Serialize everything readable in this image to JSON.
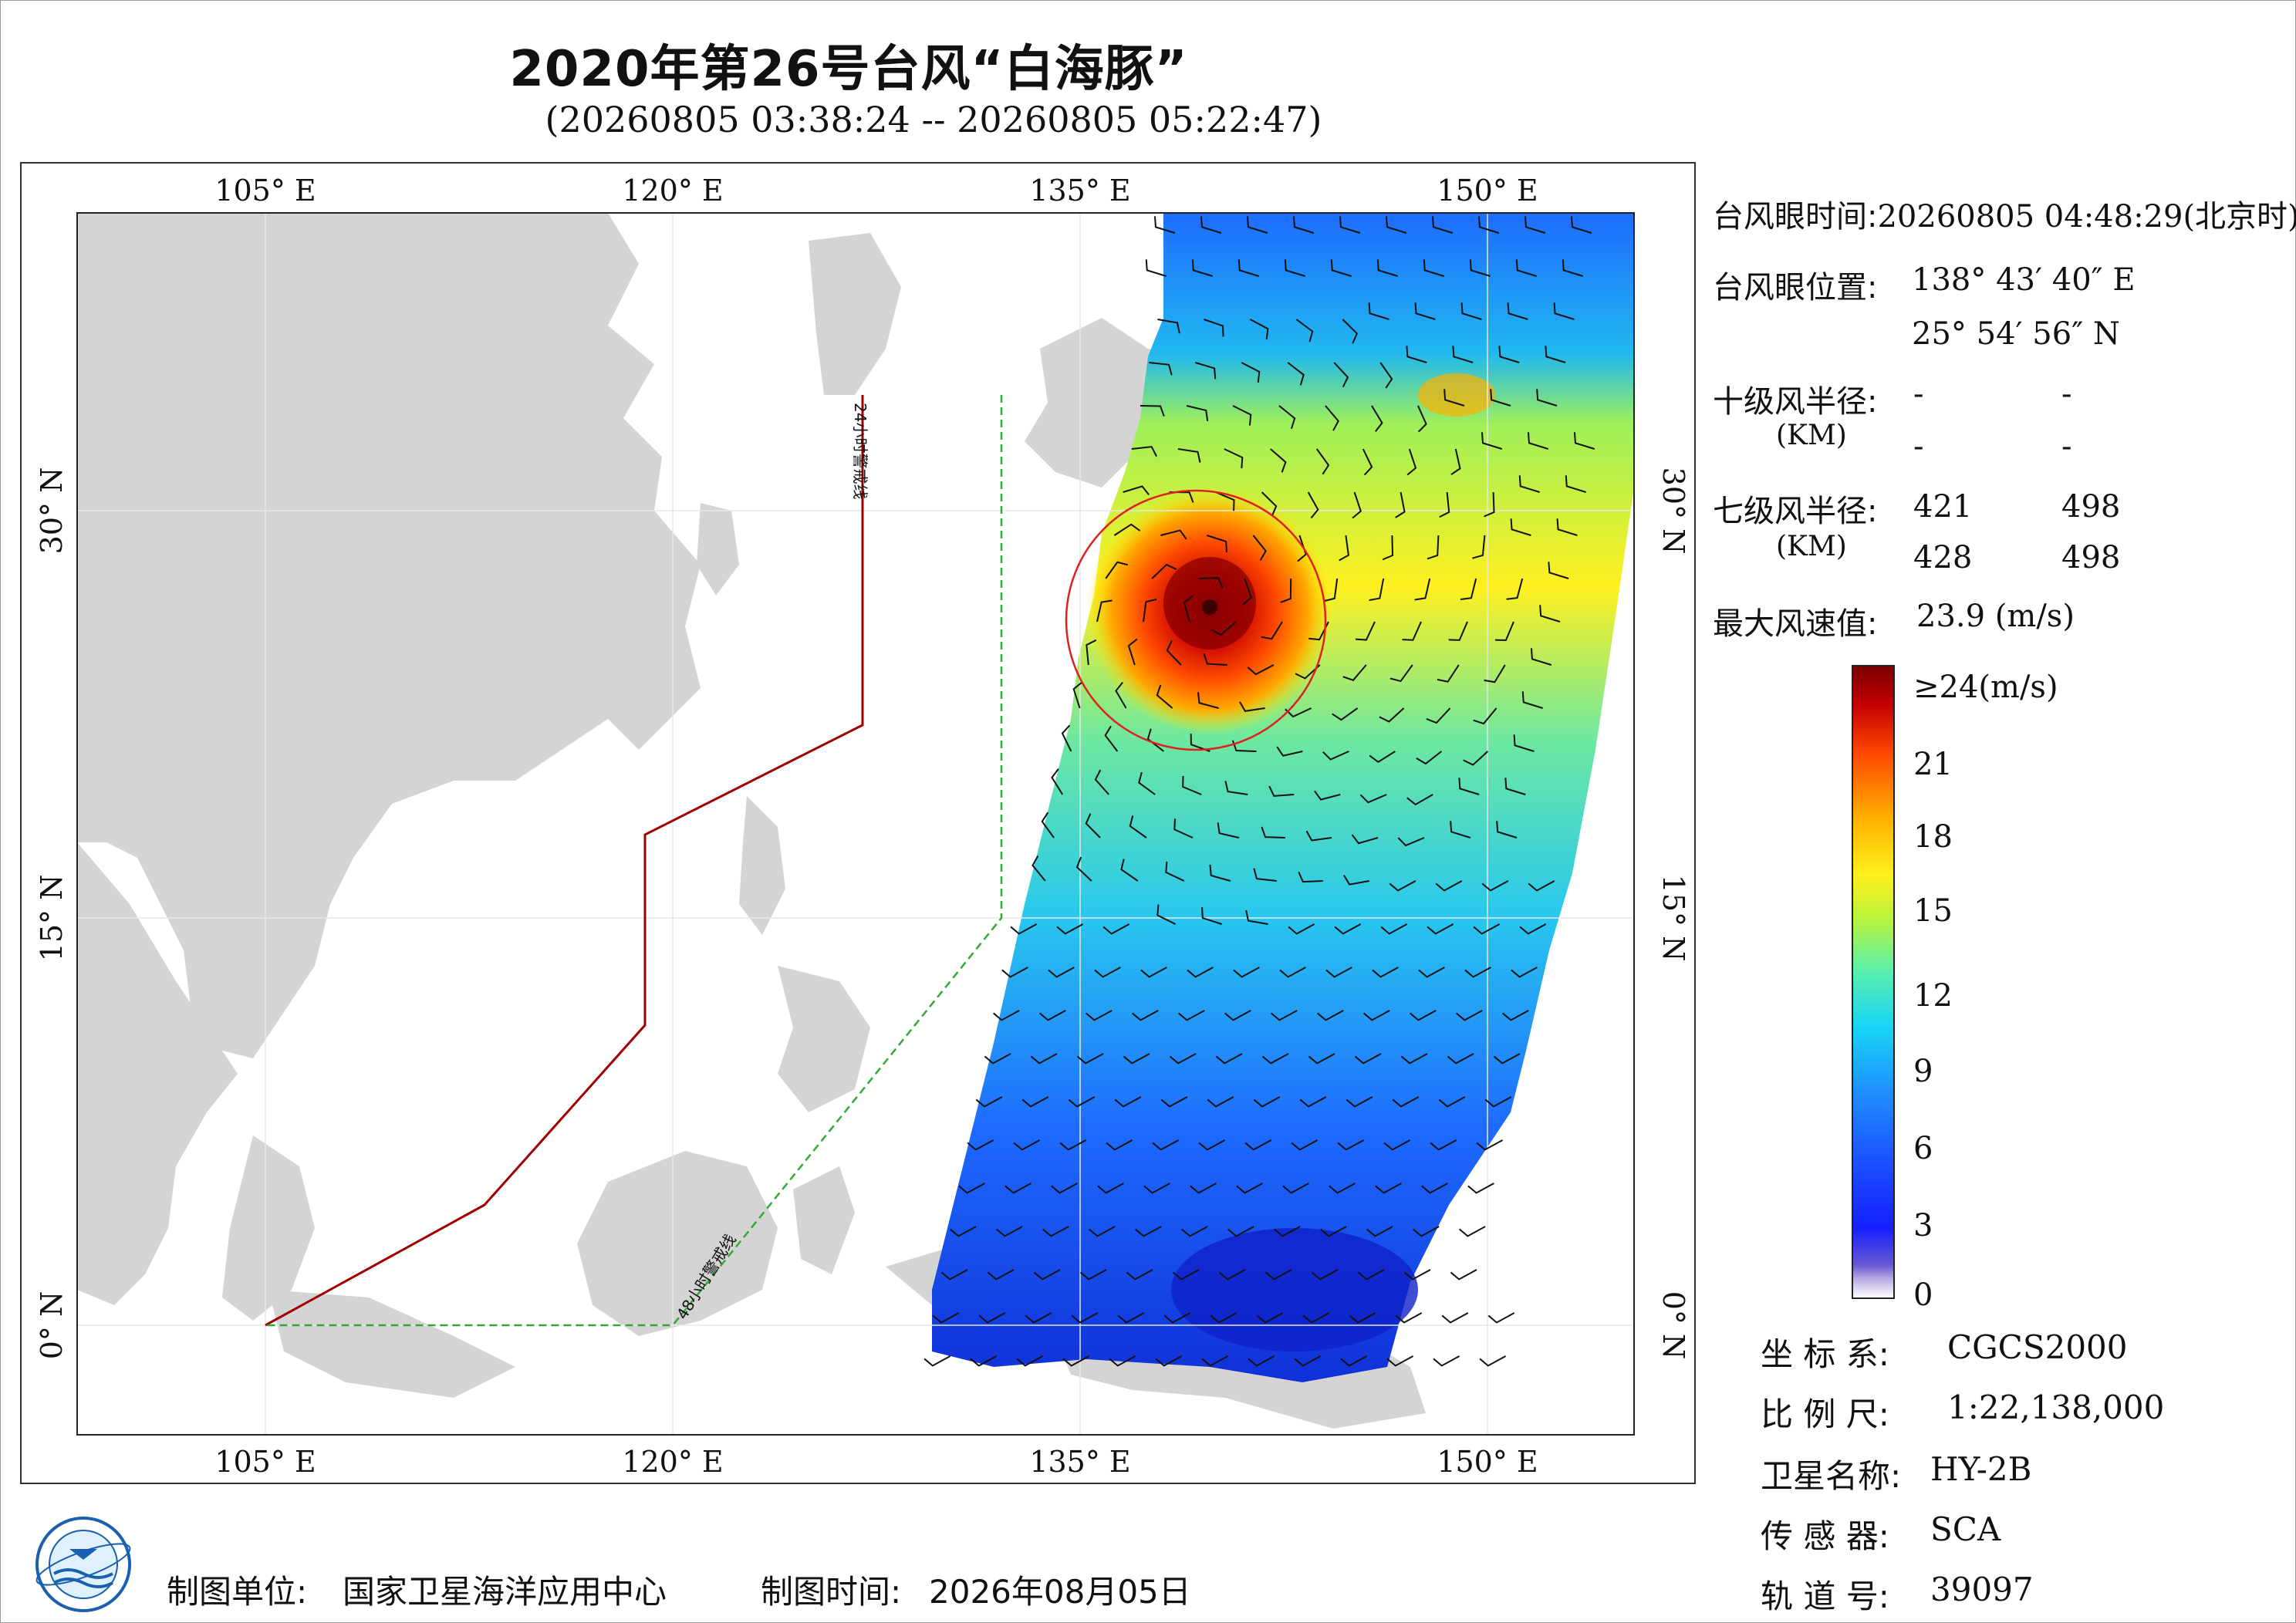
{
  "title": "2020年第26号台风“白海豚”",
  "subtitle": "(20260805 03:38:24 -- 20260805 05:22:47)",
  "map": {
    "lon_labels": [
      "105° E",
      "120° E",
      "135° E",
      "150° E"
    ],
    "lat_labels": [
      "30° N",
      "15° N",
      "0° N"
    ],
    "warning_24h": "24小时警戒线",
    "warning_48h": "48小时警戒线"
  },
  "info": {
    "eye_time_label": "台风眼时间:",
    "eye_time_value": "20260805 04:48:29(北京时)",
    "eye_pos_label": "台风眼位置:",
    "eye_lon": "138° 43′ 40″ E",
    "eye_lat": "25° 54′ 56″ N",
    "r10_label": "十级风半径:",
    "unit_km": "(KM)",
    "r10_values": [
      "-",
      "-",
      "-",
      "-"
    ],
    "r7_label": "七级风半径:",
    "r7_values": [
      "421",
      "498",
      "428",
      "498"
    ],
    "max_wind_label": "最大风速值:",
    "max_wind_value": "23.9  (m/s)"
  },
  "colorbar": {
    "ticks": [
      "≥24(m/s)",
      "21",
      "18",
      "15",
      "12",
      "9",
      "6",
      "3",
      "0"
    ]
  },
  "meta": {
    "crs_label": "坐 标 系:",
    "crs_value": "CGCS2000",
    "scale_label": "比 例 尺:",
    "scale_value": "1:22,138,000",
    "sat_label": "卫星名称:",
    "sat_value": "HY-2B",
    "sensor_label": "传 感 器:",
    "sensor_value": "SCA",
    "orbit_label": "轨 道 号:",
    "orbit_value": "39097"
  },
  "footer": {
    "unit_label": "制图单位:",
    "unit_value": "国家卫星海洋应用中心",
    "time_label": "制图时间:",
    "time_value": "2026年08月05日"
  },
  "colors": {
    "land": "#d4d4d4",
    "warning24": "#a00000",
    "warning48": "#33aa33",
    "typhoon_circle": "#e02020"
  }
}
